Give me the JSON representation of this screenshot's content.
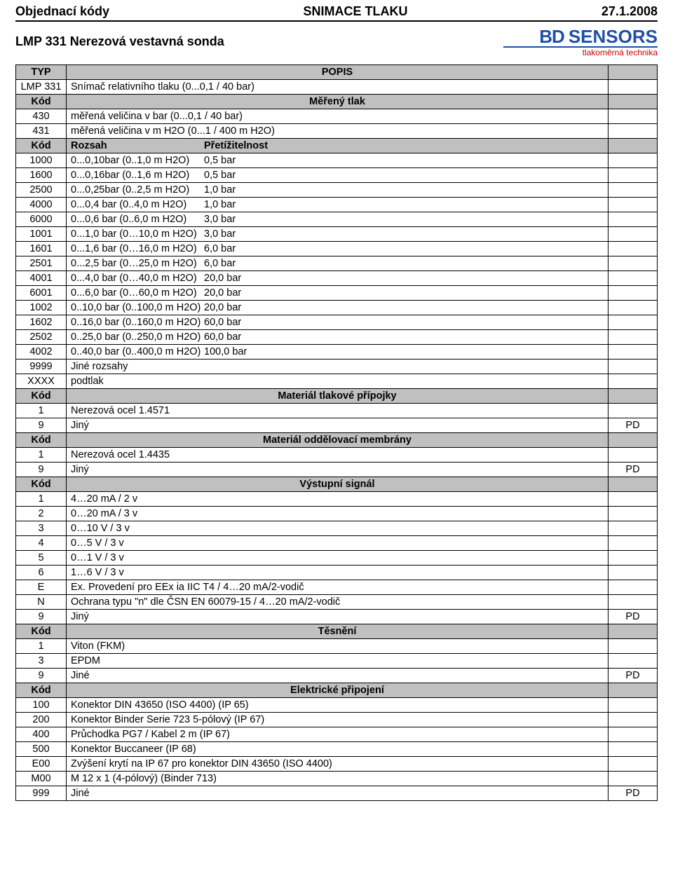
{
  "colors": {
    "section_bg": "#c0c0c0",
    "border": "#000000",
    "logo_blue": "#1f4fa8",
    "logo_red": "#c00000",
    "text": "#000000",
    "page_bg": "#ffffff"
  },
  "header": {
    "left": "Objednací kódy",
    "center": "SNIMACE TLAKU",
    "right": "27.1.2008",
    "subtitle": "LMP 331 Nerezová vestavná sonda",
    "logo_bd": "BD",
    "logo_sensors": "SENSORS",
    "logo_tag": "tlakoměrná technika"
  },
  "table": {
    "head": {
      "c1": "TYP",
      "c2": "POPIS",
      "c3": ""
    },
    "rows": [
      {
        "code": "LMP 331",
        "desc": "Snímač relativního tlaku (0...0,1 / 40 bar)",
        "right": ""
      },
      {
        "section": true,
        "code": "Kód",
        "center": "Měřený tlak",
        "right": ""
      },
      {
        "code": "430",
        "desc": "měřená veličina v bar (0...0,1 / 40 bar)",
        "right": ""
      },
      {
        "code": "431",
        "desc": "měřená veličina v m H2O (0...1 / 400 m H2O)",
        "right": ""
      },
      {
        "section": true,
        "code": "Kód",
        "two": true,
        "c1": "Rozsah",
        "c2": "Přetížitelnost",
        "right": ""
      },
      {
        "code": "1000",
        "two": true,
        "c1": "0...0,10bar  (0..1,0 m H2O)",
        "c2": "0,5 bar",
        "right": ""
      },
      {
        "code": "1600",
        "two": true,
        "c1": "0...0,16bar  (0..1,6 m H2O)",
        "c2": "0,5 bar",
        "right": ""
      },
      {
        "code": "2500",
        "two": true,
        "c1": "0...0,25bar  (0..2,5 m H2O)",
        "c2": "1,0 bar",
        "right": ""
      },
      {
        "code": "4000",
        "two": true,
        "c1": "0...0,4  bar  (0..4,0 m H2O)",
        "c2": "1,0 bar",
        "right": ""
      },
      {
        "code": "6000",
        "two": true,
        "c1": "0...0,6  bar  (0..6,0 m H2O)",
        "c2": "3,0 bar",
        "right": ""
      },
      {
        "code": "1001",
        "two": true,
        "c1": "0...1,0  bar  (0…10,0 m H2O)",
        "c2": "3,0 bar",
        "right": ""
      },
      {
        "code": "1601",
        "two": true,
        "c1": "0...1,6  bar  (0…16,0 m H2O)",
        "c2": "6,0 bar",
        "right": ""
      },
      {
        "code": "2501",
        "two": true,
        "c1": "0...2,5 bar   (0…25,0 m H2O)",
        "c2": "6,0 bar",
        "right": ""
      },
      {
        "code": "4001",
        "two": true,
        "c1": "0...4,0 bar   (0…40,0 m H2O)",
        "c2": "20,0 bar",
        "right": ""
      },
      {
        "code": "6001",
        "two": true,
        "c1": "0...6,0 bar   (0…60,0 m H2O)",
        "c2": "20,0 bar",
        "right": ""
      },
      {
        "code": "1002",
        "two": true,
        "c1": "0..10,0 bar  (0..100,0 m H2O)",
        "c2": "20,0 bar",
        "right": ""
      },
      {
        "code": "1602",
        "two": true,
        "c1": "0..16,0 bar  (0..160,0 m H2O)",
        "c2": "60,0 bar",
        "right": ""
      },
      {
        "code": "2502",
        "two": true,
        "c1": "0..25,0 bar  (0..250,0 m H2O)",
        "c2": "60,0 bar",
        "right": ""
      },
      {
        "code": "4002",
        "two": true,
        "c1": "0..40,0 bar  (0..400,0 m H2O)",
        "c2": "100,0 bar",
        "right": ""
      },
      {
        "code": "9999",
        "desc": "Jiné rozsahy",
        "right": ""
      },
      {
        "code": "XXXX",
        "desc": "podtlak",
        "right": ""
      },
      {
        "section": true,
        "code": "Kód",
        "center": "Materiál tlakové přípojky",
        "right": ""
      },
      {
        "code": "1",
        "desc": "Nerezová ocel 1.4571",
        "right": ""
      },
      {
        "code": "9",
        "desc": "Jiný",
        "right": "PD"
      },
      {
        "section": true,
        "code": "Kód",
        "center": "Materiál oddělovací membrány",
        "right": ""
      },
      {
        "code": "1",
        "desc": "Nerezová ocel 1.4435",
        "right": ""
      },
      {
        "code": "9",
        "desc": "Jiný",
        "right": "PD"
      },
      {
        "section": true,
        "code": "Kód",
        "center": "Výstupní signál",
        "right": ""
      },
      {
        "code": "1",
        "desc": "4…20 mA / 2 v",
        "right": ""
      },
      {
        "code": "2",
        "desc": "0…20 mA / 3 v",
        "right": ""
      },
      {
        "code": "3",
        "desc": "0…10 V / 3 v",
        "right": ""
      },
      {
        "code": "4",
        "desc": "0…5 V / 3 v",
        "right": ""
      },
      {
        "code": "5",
        "desc": "0…1 V / 3 v",
        "right": ""
      },
      {
        "code": "6",
        "desc": "1…6 V / 3 v",
        "right": ""
      },
      {
        "code": "E",
        "desc": "Ex. Provedení pro EEx ia IIC T4 / 4…20 mA/2-vodič",
        "right": ""
      },
      {
        "code": "N",
        "desc": "Ochrana typu \"n\" dle ČSN EN 60079-15 / 4…20 mA/2-vodič",
        "right": ""
      },
      {
        "code": "9",
        "desc": "Jiný",
        "right": "PD"
      },
      {
        "section": true,
        "code": "Kód",
        "center": "Těsnění",
        "right": ""
      },
      {
        "code": "1",
        "desc": "Viton (FKM)",
        "right": ""
      },
      {
        "code": "3",
        "desc": "EPDM",
        "right": ""
      },
      {
        "code": "9",
        "desc": "Jiné",
        "right": "PD"
      },
      {
        "section": true,
        "code": "Kód",
        "center": "Elektrické připojení",
        "right": ""
      },
      {
        "code": "100",
        "desc": "Konektor DIN 43650 (ISO 4400) (IP 65)",
        "right": ""
      },
      {
        "code": "200",
        "desc": "Konektor Binder Serie 723 5-pólový (IP 67)",
        "right": ""
      },
      {
        "code": "400",
        "desc": "Průchodka PG7 / Kabel 2 m (IP 67)",
        "right": ""
      },
      {
        "code": "500",
        "desc": "Konektor Buccaneer (IP 68)",
        "right": ""
      },
      {
        "code": "E00",
        "desc": "Zvýšení krytí na IP 67 pro konektor DIN 43650 (ISO 4400)",
        "right": ""
      },
      {
        "code": "M00",
        "desc": "M 12 x 1 (4-pólový) (Binder 713)",
        "right": ""
      },
      {
        "code": "999",
        "desc": "Jiné",
        "right": "PD"
      }
    ]
  }
}
